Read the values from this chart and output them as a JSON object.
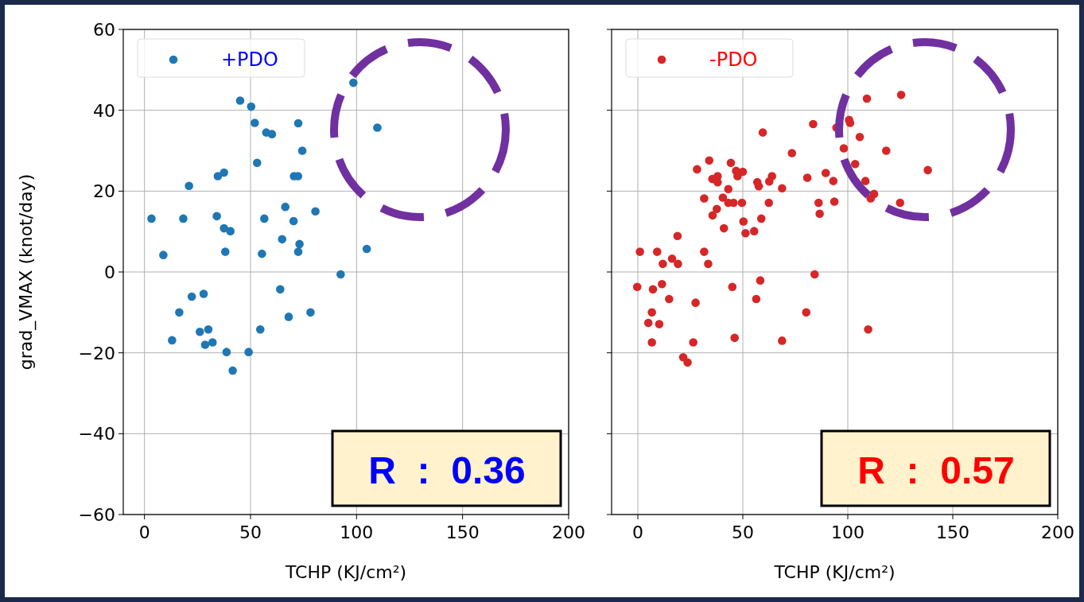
{
  "chart_data": [
    {
      "type": "scatter",
      "xlabel": "TCHP (KJ/cm²)",
      "ylabel": "grad_VMAX (knot/day)",
      "xlim": [
        -10,
        200
      ],
      "ylim": [
        -60,
        60
      ],
      "xticks": [
        0,
        50,
        100,
        150,
        200
      ],
      "yticks": [
        {
          "value": -60,
          "label": "−60"
        },
        {
          "value": -40,
          "label": "−40"
        },
        {
          "value": -20,
          "label": "−20"
        },
        0,
        20,
        40,
        60
      ],
      "grid": true,
      "legend": "top left",
      "marker": "circle",
      "annotations": [
        "R  :  0.36"
      ],
      "series": [
        {
          "name": "+PDO",
          "color": "#1f77b4",
          "x": [
            45.1,
            50.3,
            52,
            57.4,
            60.1,
            72.5,
            74.4,
            53.1,
            34.6,
            37.5,
            21,
            70.5,
            72.4,
            3.3,
            18.3,
            34.1,
            37.5,
            40.5,
            56.5,
            66.4,
            70.3,
            80.6,
            64.9,
            73.1,
            72.5,
            38.1,
            55.4,
            8.9,
            104.8,
            92.5,
            64,
            22.3,
            27.9,
            16.4,
            78.3,
            68,
            26.1,
            30.1,
            54.6,
            13,
            28.6,
            32.1,
            38.7,
            49.1,
            41.6,
            98.5,
            109.8
          ],
          "values": [
            42.4,
            40.9,
            36.9,
            34.5,
            34.1,
            36.8,
            30,
            27,
            23.7,
            24.6,
            21.3,
            23.7,
            23.7,
            13.2,
            13.2,
            13.8,
            10.8,
            10.1,
            13.2,
            16.1,
            12.6,
            15,
            8.1,
            6.9,
            5,
            5,
            4.5,
            4.2,
            5.7,
            -0.6,
            -4.3,
            -6.1,
            -5.4,
            -10,
            -10,
            -11.1,
            -14.8,
            -14.2,
            -14.2,
            -16.9,
            -18,
            -17.4,
            -19.8,
            -19.8,
            -24.4,
            46.8,
            35.7
          ]
        }
      ]
    },
    {
      "type": "scatter",
      "xlabel": "TCHP (KJ/cm²)",
      "xlim": [
        -12.5,
        200
      ],
      "ylim": [
        -60,
        60
      ],
      "xticks": [
        0,
        50,
        100,
        150,
        200
      ],
      "yticks": [
        {
          "value": -60,
          "label": null
        },
        {
          "value": -40,
          "label": null
        },
        {
          "value": -20,
          "label": null
        },
        {
          "value": 0,
          "label": null
        },
        {
          "value": 20,
          "label": null
        },
        {
          "value": 40,
          "label": null
        },
        {
          "value": 60,
          "label": null
        }
      ],
      "grid": true,
      "legend": "top left",
      "marker": "circle",
      "tick_labels": "x",
      "annotations": [
        "R  :  0.57"
      ],
      "series": [
        {
          "name": "-PDO",
          "color": "#d62728",
          "x": [
            59.5,
            73.4,
            83.5,
            34,
            28.2,
            44.3,
            46.8,
            50,
            47.5,
            35.5,
            38,
            38,
            56.9,
            57.6,
            62.6,
            63.9,
            68.7,
            80.7,
            43.1,
            31.6,
            40.5,
            43.1,
            45.6,
            49.6,
            62.4,
            37.6,
            35.6,
            50.3,
            58.8,
            41,
            51.3,
            55.4,
            18.9,
            1,
            9.2,
            31.6,
            16.3,
            19.1,
            11.9,
            33.5,
            84.2,
            -0.3,
            7.2,
            11.5,
            45,
            58.3,
            14.9,
            27.5,
            56.4,
            6.7,
            80.2,
            5,
            10.2,
            6.7,
            26.4,
            46.1,
            68.7,
            21.6,
            23.7,
            109.1,
            125.4,
            94.6,
            100.6,
            101.1,
            105.7,
            118.3,
            98.1,
            103.5,
            138.1,
            89.5,
            93.1,
            108.4,
            112.5,
            110.9,
            124.9,
            86.1,
            93.6,
            86.6,
            109.7
          ],
          "values": [
            34.5,
            29.4,
            36.6,
            27.6,
            25.4,
            27,
            25,
            24.8,
            23.7,
            23,
            23.7,
            22.2,
            22.2,
            21.2,
            22.4,
            23.7,
            20.7,
            23.3,
            20.5,
            18.2,
            18.4,
            17.1,
            17.1,
            17.1,
            17.1,
            15.6,
            14,
            12.5,
            13.2,
            10.8,
            9.6,
            10.1,
            8.9,
            5,
            5,
            5,
            3.3,
            2,
            2,
            2,
            -0.6,
            -3.7,
            -4.3,
            -3,
            -3.7,
            -2.1,
            -6.7,
            -7.6,
            -6.7,
            -10,
            -10,
            -12.6,
            -12.9,
            -17.4,
            -17.4,
            -16.3,
            -17,
            -21.1,
            -22.4,
            42.9,
            43.8,
            35.7,
            37.6,
            36.9,
            33.4,
            30,
            30.6,
            26.7,
            25.2,
            24.5,
            22.5,
            22.5,
            19.3,
            18.2,
            17.1,
            17.1,
            17.4,
            14.4,
            -14.2
          ]
        }
      ]
    }
  ]
}
